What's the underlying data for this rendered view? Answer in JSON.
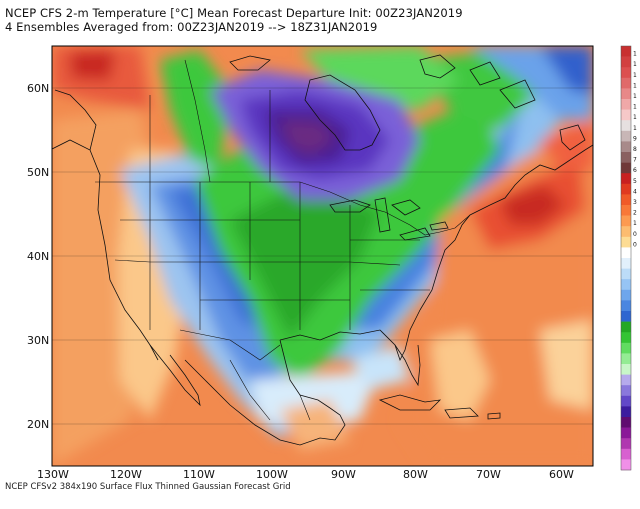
{
  "header": {
    "line1": "NCEP CFS 2-m Temperature [°C] Mean Forecast Departure Init: 00Z23JAN2019",
    "line2": "4 Ensembles Averaged from: 00Z23JAN2019 --> 18Z31JAN2019"
  },
  "footer": "NCEP CFSv2 384x190 Surface Flux Thinned Gaussian Forecast Grid",
  "map": {
    "lat_labels": [
      "60N",
      "50N",
      "40N",
      "30N",
      "20N"
    ],
    "lon_labels": [
      "130W",
      "120W",
      "110W",
      "100W",
      "90W",
      "80W",
      "70W",
      "60W"
    ]
  },
  "colorbar": {
    "labels": [
      "1",
      "1",
      "1",
      "1",
      "1",
      "1",
      "1",
      "1",
      "9",
      "8",
      "7",
      "6",
      "5",
      "4",
      "3",
      "2",
      "1",
      "0",
      "0",
      "",
      "",
      "",
      "",
      "",
      "",
      "",
      "",
      "",
      "",
      "",
      "",
      "",
      "",
      "",
      "",
      "",
      "",
      "",
      "",
      ""
    ],
    "colors": [
      "#c83030",
      "#d24040",
      "#dc5050",
      "#e06a6a",
      "#e88888",
      "#f0a8a8",
      "#f6c8c8",
      "#e6e0e0",
      "#c8b6b6",
      "#a88a8a",
      "#8a6060",
      "#703838",
      "#c82020",
      "#e03a20",
      "#f05a28",
      "#f87838",
      "#fc9a50",
      "#fcbc70",
      "#fddc94",
      "#ffffff",
      "#e2f0fc",
      "#bcdcf8",
      "#96c4f4",
      "#6ea6ec",
      "#4a86e0",
      "#2e66d0",
      "#24a824",
      "#34c434",
      "#60dc60",
      "#94ec94",
      "#c8f6c8",
      "#b6aaec",
      "#8a78dc",
      "#6248c8",
      "#3c1c9e",
      "#600c70",
      "#8a1898",
      "#b038b0",
      "#d860d0",
      "#f090e8"
    ]
  }
}
